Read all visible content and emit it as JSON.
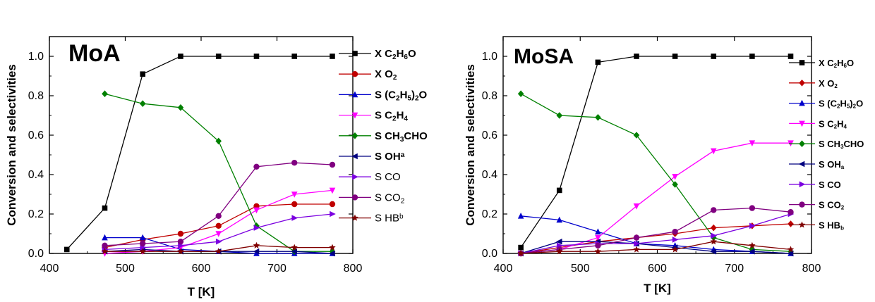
{
  "chart_data": [
    {
      "type": "line",
      "title": "MoA",
      "xlabel": "T [K]",
      "ylabel": "Conversion and selectivities",
      "xlim": [
        400,
        800
      ],
      "ylim": [
        0,
        1.1
      ],
      "xticks": [
        "400",
        "500",
        "600",
        "700",
        "800"
      ],
      "yticks": [
        "0.0",
        "0.2",
        "0.4",
        "0.6",
        "0.8",
        "1.0"
      ],
      "grid": false,
      "legend_position": "right",
      "series": [
        {
          "name": "X C2H6O",
          "legend_parts": [
            [
              "X C",
              ""
            ],
            [
              "2",
              "sub"
            ],
            [
              "H",
              ""
            ],
            [
              "6",
              "sub"
            ],
            [
              "O",
              ""
            ]
          ],
          "bold": true,
          "color": "#000000",
          "marker": "square",
          "x": [
            423,
            473,
            523,
            573,
            623,
            673,
            723,
            773
          ],
          "y": [
            0.02,
            0.23,
            0.91,
            1.0,
            1.0,
            1.0,
            1.0,
            1.0
          ]
        },
        {
          "name": "X O2",
          "legend_parts": [
            [
              "X O",
              ""
            ],
            [
              "2",
              "sub"
            ]
          ],
          "bold": true,
          "color": "#c00000",
          "marker": "circle",
          "x": [
            473,
            523,
            573,
            623,
            673,
            723,
            773
          ],
          "y": [
            0.03,
            0.07,
            0.1,
            0.14,
            0.24,
            0.25,
            0.25
          ]
        },
        {
          "name": "S (C2H5)2O",
          "legend_parts": [
            [
              "S (C",
              ""
            ],
            [
              "2",
              "sub"
            ],
            [
              "H",
              ""
            ],
            [
              "5",
              "sub"
            ],
            [
              ")",
              ""
            ],
            [
              "2",
              "sub"
            ],
            [
              "O",
              ""
            ]
          ],
          "bold": true,
          "color": "#0000cc",
          "marker": "triangle-up",
          "x": [
            473,
            523,
            573,
            623,
            673,
            723,
            773
          ],
          "y": [
            0.08,
            0.08,
            0.02,
            0.01,
            0.0,
            0.0,
            0.0
          ]
        },
        {
          "name": "S C2H4",
          "legend_parts": [
            [
              "S C",
              ""
            ],
            [
              "2",
              "sub"
            ],
            [
              "H",
              ""
            ],
            [
              "4",
              "sub"
            ]
          ],
          "bold": true,
          "color": "#ff00ff",
          "marker": "triangle-down",
          "x": [
            473,
            523,
            573,
            623,
            673,
            723,
            773
          ],
          "y": [
            0.0,
            0.01,
            0.03,
            0.1,
            0.22,
            0.3,
            0.32
          ]
        },
        {
          "name": "S CH3CHO",
          "legend_parts": [
            [
              "S CH",
              ""
            ],
            [
              "3",
              "sub"
            ],
            [
              "CHO",
              ""
            ]
          ],
          "bold": true,
          "color": "#008000",
          "marker": "diamond",
          "x": [
            473,
            523,
            573,
            623,
            673,
            723,
            773
          ],
          "y": [
            0.81,
            0.76,
            0.74,
            0.57,
            0.14,
            0.01,
            0.01
          ]
        },
        {
          "name": "S OHa",
          "legend_parts": [
            [
              "S OH",
              ""
            ],
            [
              "a",
              "sup"
            ]
          ],
          "bold": true,
          "color": "#000080",
          "marker": "triangle-left",
          "x": [
            473,
            523,
            573,
            623,
            673,
            723,
            773
          ],
          "y": [
            0.01,
            0.02,
            0.01,
            0.01,
            0.01,
            0.01,
            0.0
          ]
        },
        {
          "name": "S CO",
          "legend_parts": [
            [
              "S CO",
              ""
            ]
          ],
          "bold": false,
          "color": "#7b00e0",
          "marker": "triangle-right",
          "x": [
            473,
            523,
            573,
            623,
            673,
            723,
            773
          ],
          "y": [
            0.02,
            0.03,
            0.04,
            0.06,
            0.13,
            0.18,
            0.2
          ]
        },
        {
          "name": "S CO2",
          "legend_parts": [
            [
              "S CO",
              ""
            ],
            [
              "2",
              "sub"
            ]
          ],
          "bold": false,
          "color": "#800080",
          "marker": "circle",
          "x": [
            473,
            523,
            573,
            623,
            673,
            723,
            773
          ],
          "y": [
            0.04,
            0.05,
            0.06,
            0.19,
            0.44,
            0.46,
            0.45
          ]
        },
        {
          "name": "S HBb",
          "legend_parts": [
            [
              "S HB",
              ""
            ],
            [
              "b",
              "sup"
            ]
          ],
          "bold": false,
          "color": "#800000",
          "marker": "star",
          "x": [
            473,
            523,
            573,
            623,
            673,
            723,
            773
          ],
          "y": [
            0.01,
            0.01,
            0.01,
            0.01,
            0.04,
            0.03,
            0.03
          ]
        }
      ]
    },
    {
      "type": "line",
      "title": "MoSA",
      "xlabel": "T [K]",
      "ylabel": "Conversion and selectivities",
      "xlim": [
        400,
        800
      ],
      "ylim": [
        0,
        1.1
      ],
      "xticks": [
        "400",
        "500",
        "600",
        "700",
        "800"
      ],
      "yticks": [
        "0.0",
        "0.2",
        "0.4",
        "0.6",
        "0.8",
        "1.0"
      ],
      "grid": false,
      "legend_position": "right",
      "series": [
        {
          "name": "X C2H6O",
          "legend_parts": [
            [
              "X C",
              ""
            ],
            [
              "2",
              "sub"
            ],
            [
              "H",
              ""
            ],
            [
              "6",
              "sub"
            ],
            [
              "O",
              ""
            ]
          ],
          "bold": true,
          "color": "#000000",
          "marker": "square",
          "x": [
            423,
            473,
            523,
            573,
            623,
            673,
            723,
            773
          ],
          "y": [
            0.03,
            0.32,
            0.97,
            1.0,
            1.0,
            1.0,
            1.0,
            1.0
          ]
        },
        {
          "name": "X O2",
          "legend_parts": [
            [
              "X O",
              ""
            ],
            [
              "2",
              "sub"
            ]
          ],
          "bold": true,
          "color": "#c00000",
          "marker": "diamond",
          "x": [
            423,
            473,
            523,
            573,
            623,
            673,
            723,
            773
          ],
          "y": [
            0.0,
            0.03,
            0.06,
            0.08,
            0.1,
            0.13,
            0.14,
            0.15
          ]
        },
        {
          "name": "S (C2H5)2O",
          "legend_parts": [
            [
              "S (C",
              ""
            ],
            [
              "2",
              "sub"
            ],
            [
              "H",
              ""
            ],
            [
              "5",
              "sub"
            ],
            [
              ")",
              ""
            ],
            [
              "2",
              "sub"
            ],
            [
              "O",
              ""
            ]
          ],
          "bold": true,
          "color": "#0000cc",
          "marker": "triangle-up",
          "x": [
            423,
            473,
            523,
            573,
            623,
            673,
            723,
            773
          ],
          "y": [
            0.19,
            0.17,
            0.11,
            0.05,
            0.04,
            0.02,
            0.01,
            0.0
          ]
        },
        {
          "name": "S C2H4",
          "legend_parts": [
            [
              "S C",
              ""
            ],
            [
              "2",
              "sub"
            ],
            [
              "H",
              ""
            ],
            [
              "4",
              "sub"
            ]
          ],
          "bold": true,
          "color": "#ff00ff",
          "marker": "triangle-down",
          "x": [
            423,
            473,
            523,
            573,
            623,
            673,
            723,
            773
          ],
          "y": [
            0.0,
            0.02,
            0.08,
            0.24,
            0.39,
            0.52,
            0.56,
            0.56
          ]
        },
        {
          "name": "S CH3CHO",
          "legend_parts": [
            [
              "S CH",
              ""
            ],
            [
              "3",
              "sub"
            ],
            [
              "CHO",
              ""
            ]
          ],
          "bold": true,
          "color": "#008000",
          "marker": "diamond",
          "x": [
            423,
            473,
            523,
            573,
            623,
            673,
            723,
            773
          ],
          "y": [
            0.81,
            0.7,
            0.69,
            0.6,
            0.35,
            0.08,
            0.02,
            0.01
          ]
        },
        {
          "name": "S OHa",
          "legend_parts": [
            [
              "S OH",
              ""
            ],
            [
              "a",
              "sub"
            ]
          ],
          "bold": true,
          "color": "#000080",
          "marker": "triangle-left",
          "x": [
            423,
            473,
            523,
            573,
            623,
            673,
            723,
            773
          ],
          "y": [
            0.0,
            0.06,
            0.06,
            0.05,
            0.03,
            0.01,
            0.01,
            0.0
          ]
        },
        {
          "name": "S CO",
          "legend_parts": [
            [
              "S CO",
              ""
            ]
          ],
          "bold": true,
          "color": "#7b00e0",
          "marker": "triangle-right",
          "x": [
            423,
            473,
            523,
            573,
            623,
            673,
            723,
            773
          ],
          "y": [
            0.0,
            0.04,
            0.05,
            0.05,
            0.07,
            0.09,
            0.14,
            0.2
          ]
        },
        {
          "name": "S CO2",
          "legend_parts": [
            [
              "S CO",
              ""
            ],
            [
              "2",
              "sub"
            ]
          ],
          "bold": true,
          "color": "#800080",
          "marker": "circle",
          "x": [
            423,
            473,
            523,
            573,
            623,
            673,
            723,
            773
          ],
          "y": [
            0.0,
            0.02,
            0.04,
            0.08,
            0.11,
            0.22,
            0.23,
            0.21
          ]
        },
        {
          "name": "S HBb",
          "legend_parts": [
            [
              "S HB",
              ""
            ],
            [
              "b",
              "sub"
            ]
          ],
          "bold": true,
          "color": "#800000",
          "marker": "star",
          "x": [
            423,
            473,
            523,
            573,
            623,
            673,
            723,
            773
          ],
          "y": [
            0.0,
            0.01,
            0.01,
            0.02,
            0.02,
            0.06,
            0.04,
            0.02
          ]
        }
      ]
    }
  ]
}
